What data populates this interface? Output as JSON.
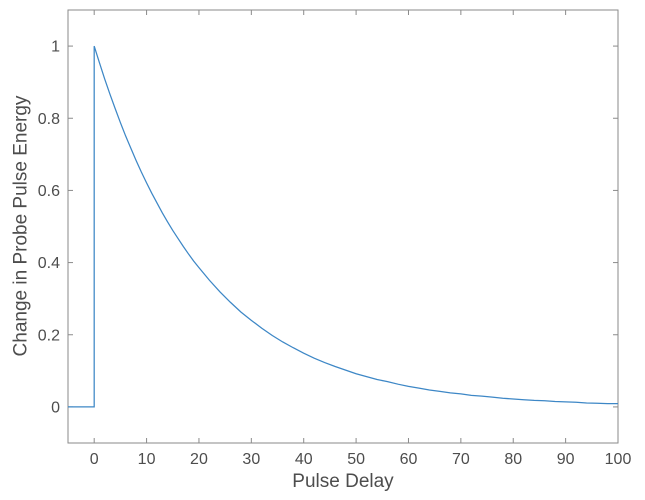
{
  "window": {
    "background": "#ffffff"
  },
  "chart_data": {
    "type": "line",
    "title": "",
    "xlabel": "Pulse Delay",
    "ylabel": "Change in Probe Pulse Energy",
    "xlim": [
      -5,
      100
    ],
    "ylim": [
      -0.1,
      1.1
    ],
    "xticks": [
      0,
      10,
      20,
      30,
      40,
      50,
      60,
      70,
      80,
      90,
      100
    ],
    "xtick_labels": [
      "0",
      "10",
      "20",
      "30",
      "40",
      "50",
      "60",
      "70",
      "80",
      "90",
      "100"
    ],
    "yticks": [
      0,
      0.2,
      0.4,
      0.6,
      0.8,
      1
    ],
    "ytick_labels": [
      "0",
      "0.2",
      "0.4",
      "0.6",
      "0.8",
      "1"
    ],
    "grid": false,
    "legend": "none",
    "box": true,
    "tick_direction": "in",
    "colors": {
      "line": "#3d87c6",
      "axis": "#8a8a8a",
      "text": "#4d4d4d",
      "background": "#ffffff"
    },
    "series": [
      {
        "name": "Change in Probe Pulse Energy",
        "x": [
          -5,
          0,
          0,
          1,
          2,
          3,
          4,
          5,
          6,
          7,
          8,
          9,
          10,
          11,
          12,
          13,
          14,
          15,
          16,
          17,
          18,
          19,
          20,
          22,
          24,
          26,
          28,
          30,
          32,
          34,
          36,
          38,
          40,
          42,
          44,
          46,
          48,
          50,
          52,
          54,
          56,
          58,
          60,
          62,
          64,
          66,
          68,
          70,
          72,
          74,
          76,
          78,
          80,
          82,
          84,
          86,
          88,
          90,
          92,
          94,
          96,
          98,
          100
        ],
        "y": [
          0,
          0,
          1,
          0.954,
          0.909,
          0.867,
          0.827,
          0.788,
          0.751,
          0.717,
          0.683,
          0.651,
          0.621,
          0.592,
          0.565,
          0.538,
          0.513,
          0.489,
          0.467,
          0.445,
          0.424,
          0.404,
          0.386,
          0.351,
          0.319,
          0.29,
          0.263,
          0.24,
          0.218,
          0.198,
          0.18,
          0.164,
          0.149,
          0.135,
          0.123,
          0.112,
          0.102,
          0.092,
          0.084,
          0.076,
          0.07,
          0.063,
          0.057,
          0.052,
          0.047,
          0.043,
          0.039,
          0.036,
          0.032,
          0.03,
          0.027,
          0.024,
          0.022,
          0.02,
          0.018,
          0.017,
          0.015,
          0.014,
          0.013,
          0.011,
          0.01,
          0.009,
          0.009
        ]
      }
    ]
  }
}
